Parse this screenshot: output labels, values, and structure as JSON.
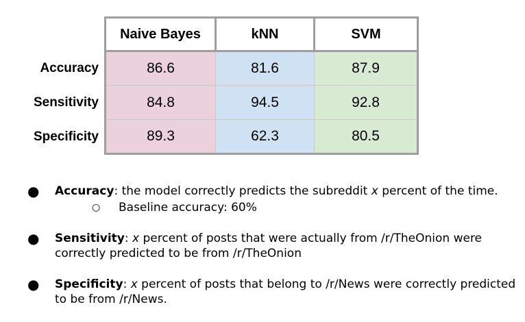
{
  "table": {
    "columns": [
      "Naive Bayes",
      "kNN",
      "SVM"
    ],
    "rows": [
      {
        "label": "Accuracy",
        "values": [
          "86.6",
          "81.6",
          "87.9"
        ]
      },
      {
        "label": "Sensitivity",
        "values": [
          "84.8",
          "94.5",
          "92.8"
        ]
      },
      {
        "label": "Specificity",
        "values": [
          "89.3",
          "62.3",
          "80.5"
        ]
      }
    ],
    "colors": {
      "naive_bayes": "#ead1dc",
      "knn": "#cfe2f3",
      "svm": "#d9ead3",
      "border": "#9e9e9e"
    }
  },
  "bullets": {
    "accuracy": {
      "term": "Accuracy",
      "pre": ":  the model correctly predicts the subreddit ",
      "var": "x",
      "post": " percent of the time.",
      "sub": "Baseline accuracy: 60%"
    },
    "sensitivity": {
      "term": "Sensitivity",
      "pre": ": ",
      "var": "x",
      "post": " percent of posts that were actually from /r/TheOnion were correctly predicted to be from /r/TheOnion"
    },
    "specificity": {
      "term": "Specificity",
      "pre": ": ",
      "var": "x",
      "post": " percent of posts that belong to /r/News were correctly predicted to be from /r/News."
    }
  }
}
